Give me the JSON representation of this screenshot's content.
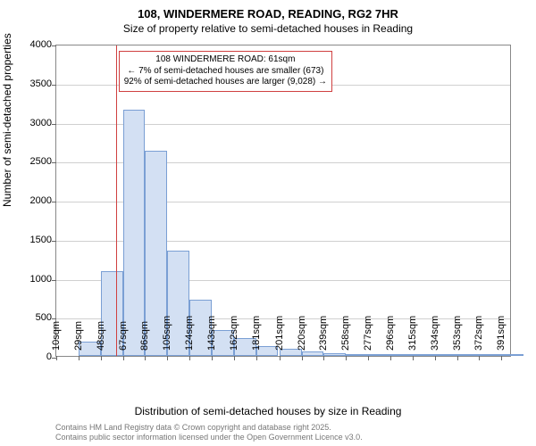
{
  "title": "108, WINDERMERE ROAD, READING, RG2 7HR",
  "subtitle": "Size of property relative to semi-detached houses in Reading",
  "ylabel": "Number of semi-detached properties",
  "xlabel": "Distribution of semi-detached houses by size in Reading",
  "chart": {
    "type": "histogram",
    "ylim": [
      0,
      4000
    ],
    "ytick_step": 500,
    "yticks": [
      0,
      500,
      1000,
      1500,
      2000,
      2500,
      3000,
      3500,
      4000
    ],
    "xticks": [
      "10sqm",
      "29sqm",
      "48sqm",
      "67sqm",
      "86sqm",
      "105sqm",
      "124sqm",
      "143sqm",
      "162sqm",
      "181sqm",
      "201sqm",
      "220sqm",
      "239sqm",
      "258sqm",
      "277sqm",
      "296sqm",
      "315sqm",
      "334sqm",
      "353sqm",
      "372sqm",
      "391sqm"
    ],
    "bars": [
      {
        "x": 29,
        "value": 185
      },
      {
        "x": 48,
        "value": 1090
      },
      {
        "x": 67,
        "value": 3150
      },
      {
        "x": 86,
        "value": 2630
      },
      {
        "x": 105,
        "value": 1350
      },
      {
        "x": 124,
        "value": 720
      },
      {
        "x": 143,
        "value": 330
      },
      {
        "x": 162,
        "value": 230
      },
      {
        "x": 181,
        "value": 130
      },
      {
        "x": 201,
        "value": 90
      },
      {
        "x": 220,
        "value": 55
      },
      {
        "x": 239,
        "value": 40
      },
      {
        "x": 258,
        "value": 25
      },
      {
        "x": 277,
        "value": 22
      },
      {
        "x": 296,
        "value": 12
      },
      {
        "x": 315,
        "value": 8
      },
      {
        "x": 334,
        "value": 5
      },
      {
        "x": 353,
        "value": 4
      },
      {
        "x": 372,
        "value": 3
      },
      {
        "x": 391,
        "value": 2
      }
    ],
    "x_domain": [
      10,
      400
    ],
    "bar_width_units": 19,
    "bar_fill": "#d3e0f3",
    "bar_stroke": "#7a9fd4",
    "grid_color": "#d0d0d0",
    "background_color": "#ffffff",
    "marker_x": 61,
    "marker_color": "#d04040"
  },
  "callout": {
    "line1": "108 WINDERMERE ROAD: 61sqm",
    "line2": "← 7% of semi-detached houses are smaller (673)",
    "line3": "92% of semi-detached houses are larger (9,028) →"
  },
  "footer": {
    "line1": "Contains HM Land Registry data © Crown copyright and database right 2025.",
    "line2": "Contains public sector information licensed under the Open Government Licence v3.0."
  },
  "fonts": {
    "title_size": 13,
    "subtitle_size": 12,
    "axis_label_size": 12,
    "tick_size": 11,
    "callout_size": 10,
    "footer_size": 9
  }
}
